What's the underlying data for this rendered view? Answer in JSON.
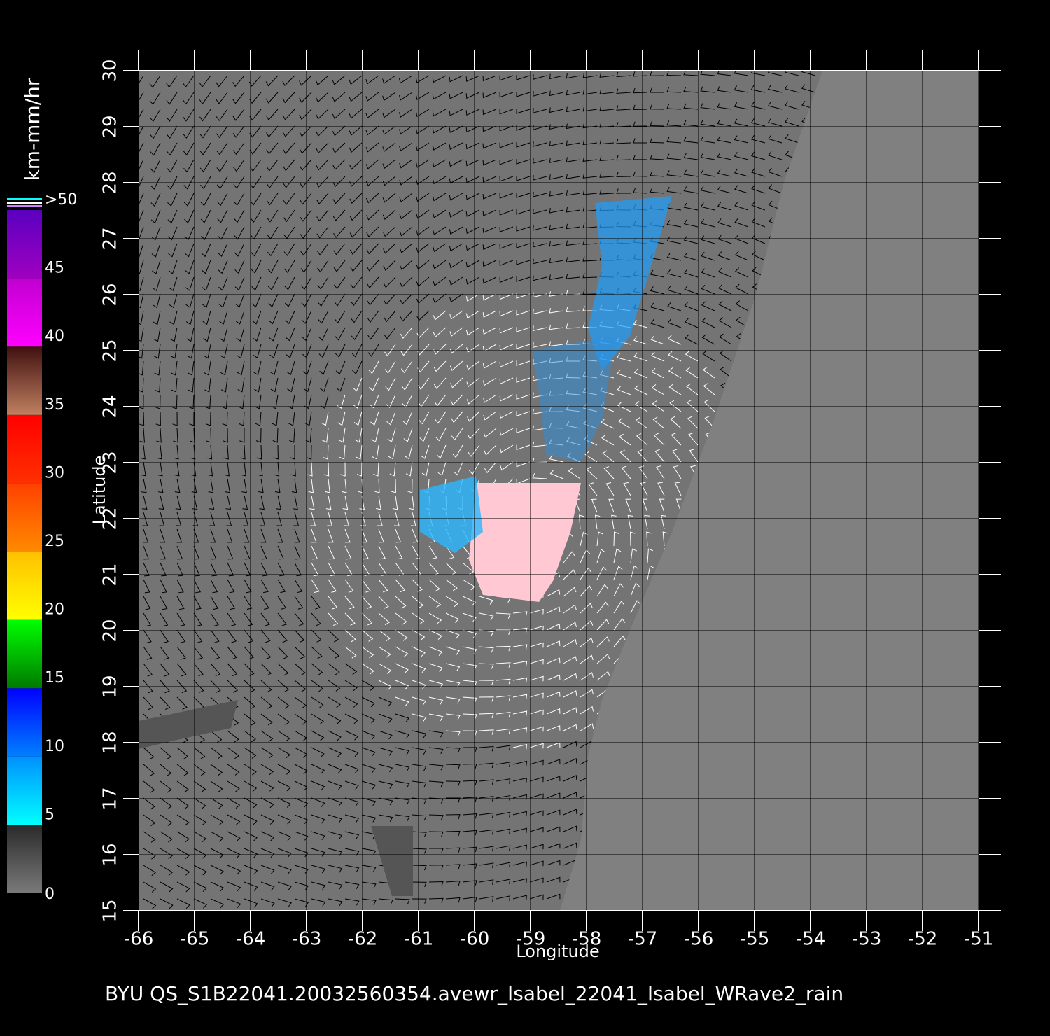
{
  "chart_data": {
    "type": "map",
    "title": "BYU  QS_S1B22041.20032560354.avewr_Isabel_22041_Isabel_WRave2_rain",
    "x_label": "Longitude",
    "y_label": "Latitude",
    "xlim": [
      -66,
      -51
    ],
    "ylim": [
      15,
      30
    ],
    "xticks": [
      -66,
      -65,
      -64,
      -63,
      -62,
      -61,
      -60,
      -59,
      -58,
      -57,
      -56,
      -55,
      -54,
      -53,
      -52,
      -51
    ],
    "yticks": [
      15,
      16,
      17,
      18,
      19,
      20,
      21,
      22,
      23,
      24,
      25,
      26,
      27,
      28,
      29,
      30
    ],
    "grid": true,
    "colorbar": {
      "label": "km-mm/hr",
      "lim": [
        0,
        50
      ],
      "ticks": [
        0,
        5,
        10,
        15,
        20,
        25,
        30,
        35,
        40,
        45,
        {
          "value": 50,
          "label": ">50"
        }
      ],
      "segment_colors": [
        [
          "#7a7a7a",
          "#2a2a2a"
        ],
        [
          "#00ffff",
          "#0090ff"
        ],
        [
          "#0080ff",
          "#0000ff"
        ],
        [
          "#007a00",
          "#00ff00"
        ],
        [
          "#ffff00",
          "#ffc000"
        ],
        [
          "#ff8a00",
          "#ff4000"
        ],
        [
          "#ff3000",
          "#ff0000"
        ],
        [
          "#c08060",
          "#401010"
        ],
        [
          "#ff00ff",
          "#c000d0"
        ],
        [
          "#a000c0",
          "#5a00c0"
        ]
      ]
    }
  }
}
